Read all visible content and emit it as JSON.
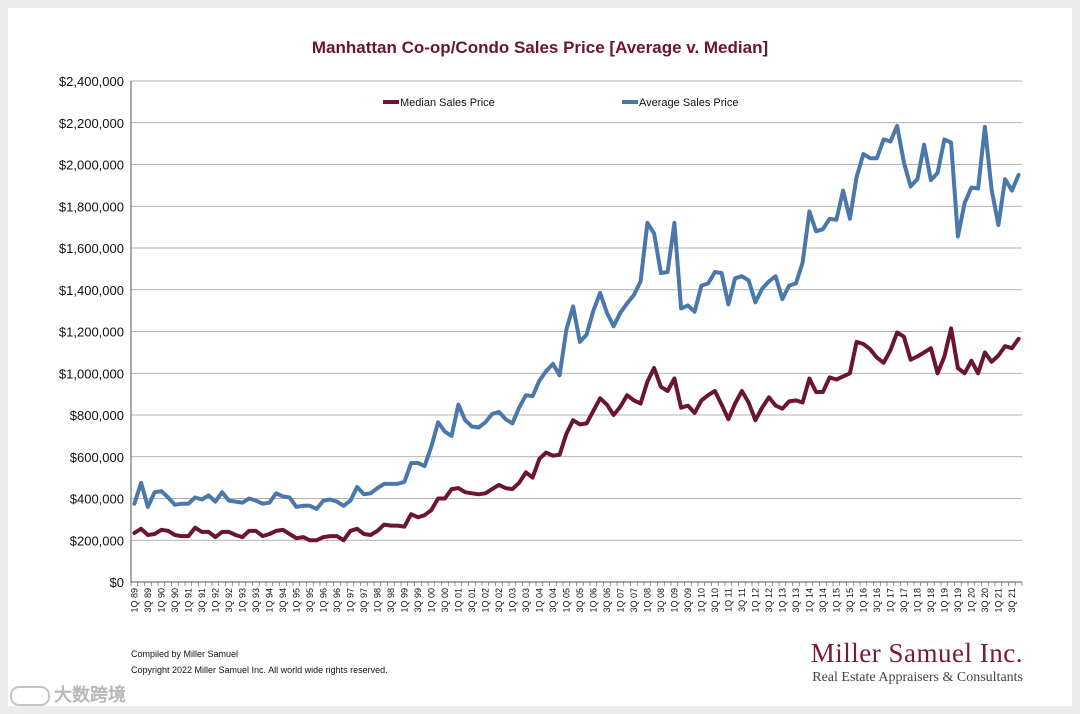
{
  "chart_data": {
    "type": "line",
    "title": "Manhattan Co-op/Condo Sales Price [Average v. Median]",
    "xlabel": "",
    "ylabel": "",
    "ylim": [
      0,
      2400000
    ],
    "yticks": [
      "$2,400,000",
      "$2,200,000",
      "$2,000,000",
      "$1,800,000",
      "$1,600,000",
      "$1,400,000",
      "$1,200,000",
      "$1,000,000",
      "$800,000",
      "$600,000",
      "$400,000",
      "$200,000",
      "$0"
    ],
    "ytick_values": [
      2400000,
      2200000,
      2000000,
      1800000,
      1600000,
      1400000,
      1200000,
      1000000,
      800000,
      600000,
      400000,
      200000,
      0
    ],
    "x_labels": [
      "1Q 89",
      "3Q 89",
      "1Q 90",
      "3Q 90",
      "1Q 91",
      "3Q 91",
      "1Q 92",
      "3Q 92",
      "1Q 93",
      "3Q 93",
      "1Q 94",
      "3Q 94",
      "1Q 95",
      "3Q 95",
      "1Q 96",
      "3Q 96",
      "1Q 97",
      "3Q 97",
      "1Q 98",
      "3Q 98",
      "1Q 99",
      "3Q 99",
      "1Q 00",
      "3Q 00",
      "1Q 01",
      "3Q 01",
      "1Q 02",
      "3Q 02",
      "1Q 03",
      "3Q 03",
      "1Q 04",
      "3Q 04",
      "1Q 05",
      "3Q 05",
      "1Q 06",
      "3Q 06",
      "1Q 07",
      "3Q 07",
      "1Q 08",
      "3Q 08",
      "1Q 09",
      "3Q 09",
      "1Q 10",
      "3Q 10",
      "1Q 11",
      "3Q 11",
      "1Q 12",
      "3Q 12",
      "1Q 13",
      "3Q 13",
      "1Q 14",
      "3Q 14",
      "1Q 15",
      "3Q 15",
      "1Q 16",
      "3Q 16",
      "1Q 17",
      "3Q 17",
      "1Q 18",
      "3Q 18",
      "1Q 19",
      "3Q 19",
      "1Q 20",
      "3Q 20",
      "1Q 21",
      "3Q 21"
    ],
    "grid": true,
    "legend_position": "top",
    "series": [
      {
        "name": "Median Sales Price",
        "color": "#6b1530",
        "values": [
          235000,
          255000,
          225000,
          230000,
          250000,
          245000,
          225000,
          220000,
          220000,
          260000,
          240000,
          240000,
          215000,
          240000,
          240000,
          225000,
          215000,
          245000,
          245000,
          220000,
          230000,
          245000,
          250000,
          230000,
          210000,
          215000,
          200000,
          200000,
          215000,
          220000,
          220000,
          200000,
          245000,
          255000,
          230000,
          225000,
          245000,
          275000,
          270000,
          270000,
          265000,
          325000,
          310000,
          320000,
          345000,
          400000,
          400000,
          445000,
          450000,
          430000,
          425000,
          420000,
          425000,
          445000,
          465000,
          450000,
          445000,
          475000,
          525000,
          500000,
          590000,
          620000,
          605000,
          610000,
          710000,
          775000,
          755000,
          760000,
          820000,
          880000,
          850000,
          800000,
          840000,
          895000,
          870000,
          855000,
          960000,
          1025000,
          935000,
          915000,
          975000,
          835000,
          845000,
          810000,
          870000,
          895000,
          915000,
          850000,
          780000,
          855000,
          915000,
          860000,
          775000,
          835000,
          885000,
          845000,
          830000,
          865000,
          870000,
          860000,
          975000,
          910000,
          910000,
          980000,
          970000,
          985000,
          1000000,
          1150000,
          1140000,
          1115000,
          1075000,
          1050000,
          1110000,
          1195000,
          1175000,
          1065000,
          1080000,
          1100000,
          1120000,
          1000000,
          1080000,
          1215000,
          1025000,
          1000000,
          1060000,
          1000000,
          1100000,
          1055000,
          1085000,
          1130000,
          1120000,
          1165000
        ]
      },
      {
        "name": "Average Sales Price",
        "color": "#4a78aa",
        "values": [
          375000,
          475000,
          360000,
          430000,
          435000,
          405000,
          370000,
          375000,
          375000,
          405000,
          395000,
          415000,
          385000,
          430000,
          390000,
          385000,
          380000,
          400000,
          390000,
          375000,
          380000,
          425000,
          410000,
          405000,
          360000,
          365000,
          365000,
          350000,
          390000,
          395000,
          385000,
          365000,
          390000,
          455000,
          420000,
          425000,
          450000,
          470000,
          470000,
          470000,
          480000,
          570000,
          570000,
          555000,
          650000,
          765000,
          720000,
          700000,
          850000,
          775000,
          745000,
          740000,
          765000,
          805000,
          815000,
          780000,
          760000,
          835000,
          895000,
          890000,
          965000,
          1010000,
          1045000,
          990000,
          1210000,
          1320000,
          1150000,
          1185000,
          1300000,
          1385000,
          1290000,
          1225000,
          1290000,
          1335000,
          1375000,
          1440000,
          1720000,
          1670000,
          1480000,
          1485000,
          1720000,
          1310000,
          1325000,
          1295000,
          1420000,
          1430000,
          1485000,
          1480000,
          1330000,
          1455000,
          1465000,
          1445000,
          1340000,
          1405000,
          1440000,
          1465000,
          1355000,
          1420000,
          1430000,
          1530000,
          1775000,
          1680000,
          1690000,
          1740000,
          1735000,
          1875000,
          1740000,
          1940000,
          2050000,
          2030000,
          2030000,
          2120000,
          2110000,
          2185000,
          2010000,
          1895000,
          1930000,
          2095000,
          1925000,
          1960000,
          2120000,
          2105000,
          1655000,
          1815000,
          1890000,
          1885000,
          2180000,
          1880000,
          1710000,
          1930000,
          1875000,
          1950000
        ]
      }
    ]
  },
  "footer": {
    "compiled_by": "Compiled by Miller Samuel",
    "copyright": "Copyright 2022 Miller Samuel Inc.  All world wide rights reserved."
  },
  "brand": {
    "name": "Miller Samuel Inc.",
    "tagline": "Real Estate Appraisers & Consultants"
  },
  "watermark": {
    "text": "大数跨境"
  }
}
